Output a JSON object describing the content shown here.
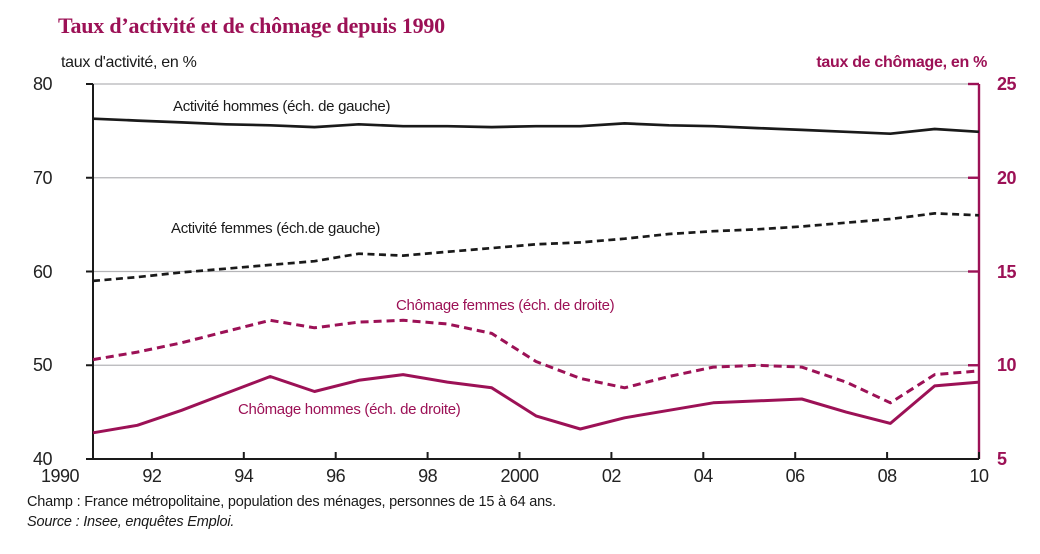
{
  "title": "Taux d’activité et de chômage depuis 1990",
  "colors": {
    "accent": "#9c1156",
    "line_black": "#1a1a1a",
    "grid_gray": "#b5b5b8"
  },
  "footer": {
    "champ": "Champ : France métropolitaine, population des ménages, personnes de 15 à 64 ans.",
    "source": "Source : Insee, enquêtes Emploi."
  },
  "chart_data": {
    "type": "line",
    "title": "Taux d’activité et de chômage depuis 1990",
    "x": [
      1990,
      1991,
      1992,
      1993,
      1994,
      1995,
      1996,
      1997,
      1998,
      1999,
      2000,
      2001,
      2002,
      2003,
      2004,
      2005,
      2006,
      2007,
      2008,
      2009,
      2010
    ],
    "x_ticks": [
      {
        "year": 1990,
        "label": "1990"
      },
      {
        "year": 1992,
        "label": "92"
      },
      {
        "year": 1994,
        "label": "94"
      },
      {
        "year": 1996,
        "label": "96"
      },
      {
        "year": 1998,
        "label": "98"
      },
      {
        "year": 2000,
        "label": "2000"
      },
      {
        "year": 2002,
        "label": "02"
      },
      {
        "year": 2004,
        "label": "04"
      },
      {
        "year": 2006,
        "label": "06"
      },
      {
        "year": 2008,
        "label": "08"
      },
      {
        "year": 2010,
        "label": "10"
      }
    ],
    "left_axis": {
      "label": "taux d'activité, en %",
      "min": 40,
      "max": 80,
      "ticks": [
        80,
        70,
        60,
        50,
        40
      ]
    },
    "right_axis": {
      "label": "taux de chômage, en %",
      "min": 5,
      "max": 25,
      "ticks": [
        25,
        20,
        15,
        10,
        5
      ]
    },
    "grid": "horizontal-gray",
    "legend_position": "inline-annotations",
    "series": [
      {
        "name": "Activité hommes (éch. de gauche)",
        "axis": "left",
        "style": "solid",
        "color": "black",
        "values": [
          76.3,
          76.1,
          75.9,
          75.7,
          75.6,
          75.4,
          75.7,
          75.5,
          75.5,
          75.4,
          75.5,
          75.5,
          75.8,
          75.6,
          75.5,
          75.3,
          75.1,
          74.9,
          74.7,
          75.2,
          74.9
        ]
      },
      {
        "name": "Activité femmes (éch.de gauche)",
        "axis": "left",
        "style": "dashed",
        "color": "black",
        "values": [
          59.0,
          59.4,
          59.9,
          60.3,
          60.7,
          61.1,
          61.9,
          61.7,
          62.1,
          62.5,
          62.9,
          63.1,
          63.5,
          64.0,
          64.3,
          64.5,
          64.8,
          65.2,
          65.6,
          66.2,
          66.0
        ]
      },
      {
        "name": "Chômage femmes (éch. de droite)",
        "axis": "right",
        "style": "dashed",
        "color": "accent",
        "values": [
          10.3,
          10.7,
          11.2,
          11.8,
          12.4,
          12.0,
          12.3,
          12.4,
          12.2,
          11.7,
          10.2,
          9.3,
          8.8,
          9.4,
          9.9,
          10.0,
          9.9,
          9.1,
          8.0,
          9.5,
          9.7
        ]
      },
      {
        "name": "Chômage hommes (éch. de droite)",
        "axis": "right",
        "style": "solid",
        "color": "accent",
        "values": [
          6.4,
          6.8,
          7.6,
          8.5,
          9.4,
          8.6,
          9.2,
          9.5,
          9.1,
          8.8,
          7.3,
          6.6,
          7.2,
          7.6,
          8.0,
          8.1,
          8.2,
          7.5,
          6.9,
          8.9,
          9.1
        ]
      }
    ]
  }
}
